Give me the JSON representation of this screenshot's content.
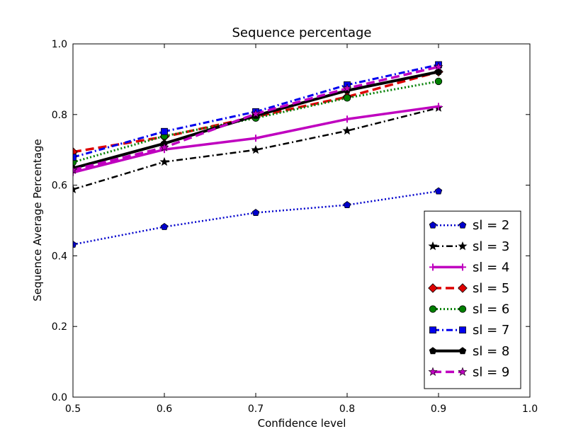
{
  "chart_data": {
    "type": "line",
    "title": "Sequence percentage",
    "xlabel": "Confidence level",
    "ylabel": "Sequence Average Percentage",
    "xlim": [
      0.5,
      1.0
    ],
    "ylim": [
      0.0,
      1.0
    ],
    "xticks": [
      "0.5",
      "0.6",
      "0.7",
      "0.8",
      "0.9",
      "1.0"
    ],
    "yticks": [
      "0.0",
      "0.2",
      "0.4",
      "0.6",
      "0.8",
      "1.0"
    ],
    "grid": false,
    "legend_position": "lower-right",
    "x": [
      0.5,
      0.6,
      0.7,
      0.8,
      0.9
    ],
    "series": [
      {
        "name": "sl = 2",
        "values": [
          0.432,
          0.482,
          0.522,
          0.544,
          0.583
        ],
        "color": "#0000cc",
        "dash": "2,3",
        "width": 2.5,
        "marker": "pentagon"
      },
      {
        "name": "sl = 3",
        "values": [
          0.588,
          0.666,
          0.7,
          0.754,
          0.819
        ],
        "color": "#000000",
        "dash": "9,4,2,4",
        "width": 2.5,
        "marker": "star"
      },
      {
        "name": "sl = 4",
        "values": [
          0.636,
          0.701,
          0.733,
          0.787,
          0.823
        ],
        "color": "#bf00bf",
        "dash": "",
        "width": 3.5,
        "marker": "plus"
      },
      {
        "name": "sl = 5",
        "values": [
          0.694,
          0.737,
          0.794,
          0.85,
          0.921
        ],
        "color": "#dd0000",
        "dash": "12,6",
        "width": 3.5,
        "marker": "diamond"
      },
      {
        "name": "sl = 6",
        "values": [
          0.665,
          0.739,
          0.79,
          0.847,
          0.894
        ],
        "color": "#007f00",
        "dash": "2,3",
        "width": 3,
        "marker": "circle"
      },
      {
        "name": "sl = 7",
        "values": [
          0.679,
          0.752,
          0.808,
          0.884,
          0.941
        ],
        "color": "#0000ee",
        "dash": "9,4,2,4",
        "width": 3,
        "marker": "square"
      },
      {
        "name": "sl = 8",
        "values": [
          0.648,
          0.718,
          0.797,
          0.868,
          0.921
        ],
        "color": "#000000",
        "dash": "",
        "width": 4,
        "marker": "pentagon"
      },
      {
        "name": "sl = 9",
        "values": [
          0.643,
          0.707,
          0.802,
          0.874,
          0.935
        ],
        "color": "#bf00bf",
        "dash": "12,6",
        "width": 3.5,
        "marker": "star"
      }
    ]
  }
}
